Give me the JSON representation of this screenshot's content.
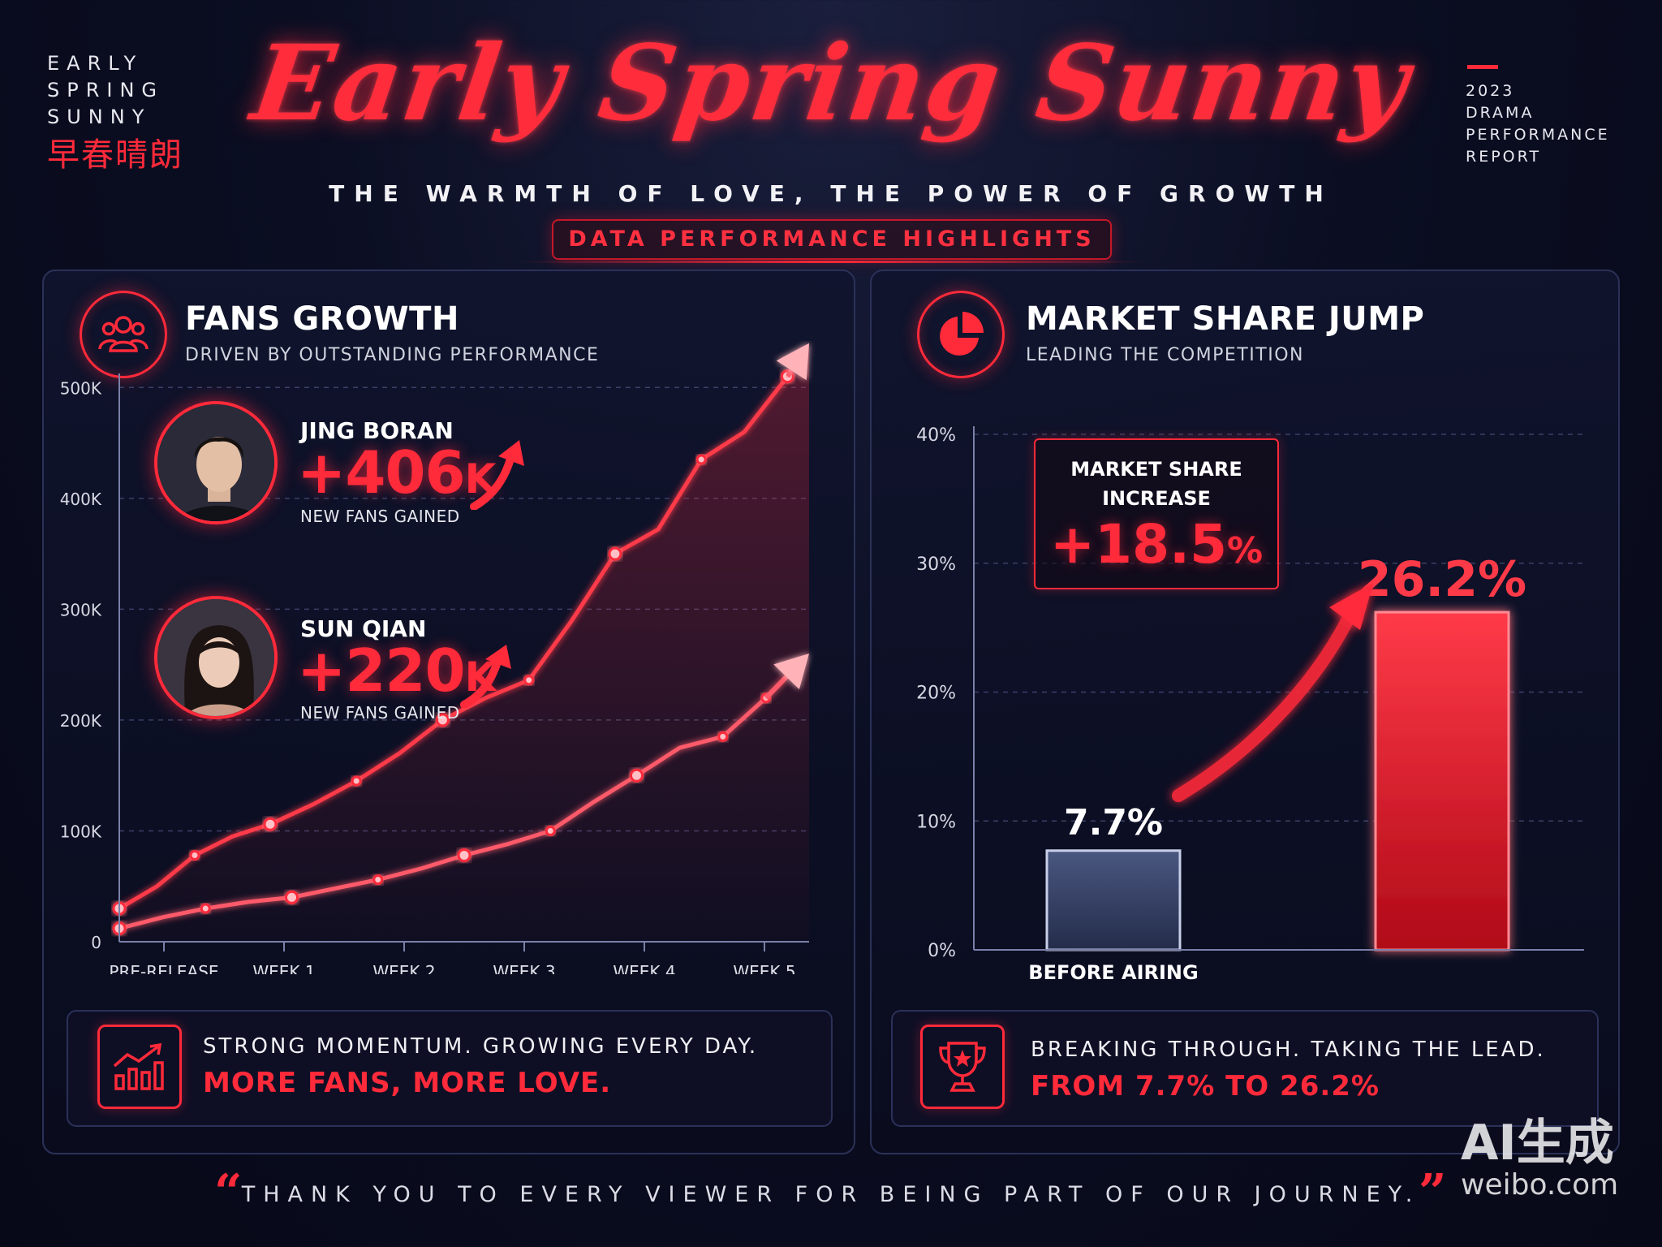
{
  "header": {
    "brand_lines": [
      "EARLY",
      "SPRING",
      "SUNNY"
    ],
    "brand_cn": "早春晴朗",
    "title": "Early Spring Sunny",
    "subtitle": "THE WARMTH OF LOVE, THE POWER OF GROWTH",
    "badge": "DATA PERFORMANCE HIGHLIGHTS",
    "report_lines": [
      "2023",
      "DRAMA",
      "PERFORMANCE",
      "REPORT"
    ]
  },
  "fans_panel": {
    "title": "FANS GROWTH",
    "subtitle": "DRIVEN BY OUTSTANDING PERFORMANCE",
    "icon": "users-group-icon",
    "people": [
      {
        "name": "JING BORAN",
        "gain": "+406",
        "unit": "K",
        "label": "NEW FANS GAINED"
      },
      {
        "name": "SUN QIAN",
        "gain": "+220",
        "unit": "K",
        "label": "NEW FANS GAINED"
      }
    ],
    "footer": {
      "line1": "STRONG MOMENTUM. GROWING EVERY DAY.",
      "line2": "MORE FANS, MORE LOVE.",
      "icon": "growth-chart-icon"
    }
  },
  "share_panel": {
    "title": "MARKET SHARE JUMP",
    "subtitle": "LEADING THE COMPETITION",
    "icon": "pie-chart-icon",
    "increase_label_1": "MARKET SHARE",
    "increase_label_2": "INCREASE",
    "increase_value": "+18.5",
    "increase_unit": "%",
    "footer": {
      "line1": "BREAKING THROUGH. TAKING THE LEAD.",
      "line2": "FROM 7.7% TO 26.2%",
      "icon": "trophy-icon"
    }
  },
  "chart_data": [
    {
      "type": "line",
      "x": [
        "PRE-RELEASE",
        "WEEK 1",
        "WEEK 2",
        "WEEK 3",
        "WEEK 4",
        "WEEK 5"
      ],
      "y_ticks": [
        "0",
        "100K",
        "200K",
        "300K",
        "400K",
        "500K"
      ],
      "ylim": [
        0,
        520000
      ],
      "series": [
        {
          "name": "JING BORAN",
          "points": [
            [
              0,
              30000
            ],
            [
              0.35,
              50000
            ],
            [
              0.7,
              78000
            ],
            [
              1.05,
              95000
            ],
            [
              1.4,
              106000
            ],
            [
              1.8,
              124000
            ],
            [
              2.2,
              145000
            ],
            [
              2.6,
              170000
            ],
            [
              3.0,
              200000
            ],
            [
              3.4,
              220000
            ],
            [
              3.8,
              236000
            ],
            [
              4.2,
              290000
            ],
            [
              4.6,
              350000
            ],
            [
              5.0,
              372000
            ],
            [
              5.4,
              435000
            ],
            [
              5.8,
              460000
            ],
            [
              6.2,
              510000
            ],
            [
              6.4,
              540000
            ]
          ]
        },
        {
          "name": "SUN QIAN",
          "points": [
            [
              0,
              12000
            ],
            [
              0.4,
              22000
            ],
            [
              0.8,
              30000
            ],
            [
              1.2,
              36000
            ],
            [
              1.6,
              40000
            ],
            [
              2.0,
              48000
            ],
            [
              2.4,
              56000
            ],
            [
              2.8,
              66000
            ],
            [
              3.2,
              78000
            ],
            [
              3.6,
              88000
            ],
            [
              4.0,
              100000
            ],
            [
              4.4,
              126000
            ],
            [
              4.8,
              150000
            ],
            [
              5.2,
              175000
            ],
            [
              5.6,
              185000
            ],
            [
              6.0,
              220000
            ],
            [
              6.4,
              260000
            ]
          ]
        }
      ]
    },
    {
      "type": "bar",
      "categories": [
        "BEFORE AIRING",
        ""
      ],
      "values": [
        7.7,
        26.2
      ],
      "value_labels": [
        "7.7%",
        "26.2%"
      ],
      "y_ticks": [
        "0%",
        "10%",
        "20%",
        "30%",
        "40%"
      ],
      "ylim": [
        0,
        40
      ]
    }
  ],
  "footer": {
    "thanks": "THANK YOU TO EVERY VIEWER FOR BEING PART OF OUR JOURNEY.",
    "watermark_1": "AI生成",
    "watermark_2": "weibo.com"
  },
  "colors": {
    "accent": "#ff2a3a",
    "background": "#0b0e22",
    "bar_before": "#3a4668"
  }
}
